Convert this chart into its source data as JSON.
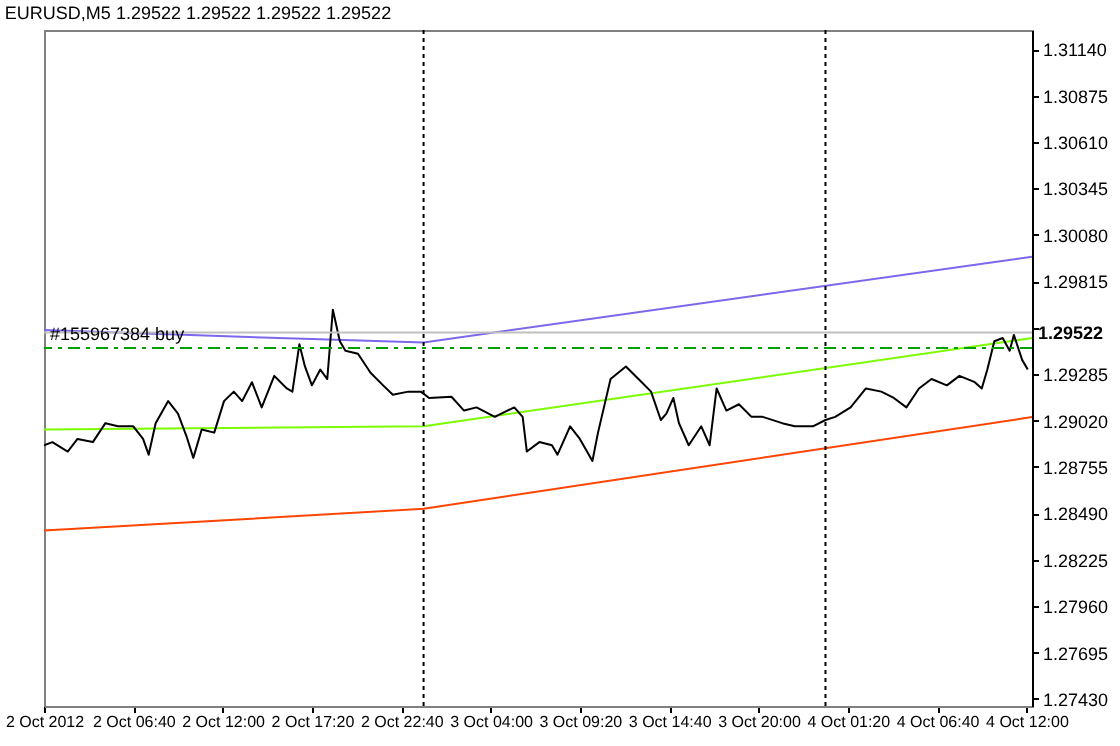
{
  "chart_data": {
    "type": "line",
    "title": "EURUSD,M5  1.29522 1.29522 1.29522 1.29522",
    "xlim": [
      "2012-10-02T01:20",
      "2012-10-04T12:20"
    ],
    "xticks": [
      {
        "value": "2012-10-02T01:20",
        "label": "2 Oct 2012"
      },
      {
        "value": "2012-10-02T06:40",
        "label": "2 Oct 06:40"
      },
      {
        "value": "2012-10-02T12:00",
        "label": "2 Oct 12:00"
      },
      {
        "value": "2012-10-02T17:20",
        "label": "2 Oct 17:20"
      },
      {
        "value": "2012-10-02T22:40",
        "label": "2 Oct 22:40"
      },
      {
        "value": "2012-10-03T04:00",
        "label": "3 Oct 04:00"
      },
      {
        "value": "2012-10-03T09:20",
        "label": "3 Oct 09:20"
      },
      {
        "value": "2012-10-03T14:40",
        "label": "3 Oct 14:40"
      },
      {
        "value": "2012-10-03T20:00",
        "label": "3 Oct 20:00"
      },
      {
        "value": "2012-10-04T01:20",
        "label": "4 Oct 01:20"
      },
      {
        "value": "2012-10-04T06:40",
        "label": "4 Oct 06:40"
      },
      {
        "value": "2012-10-04T12:00",
        "label": "4 Oct 12:00"
      }
    ],
    "ylim": [
      1.2739,
      1.3125
    ],
    "yticks": [
      {
        "value": 1.3114,
        "label": "1.31140"
      },
      1.30875,
      {
        "value": 1.3061,
        "label": "1.30610"
      },
      1.30345,
      {
        "value": 1.3008,
        "label": "1.30080"
      },
      1.29815,
      {
        "value": 1.2955,
        "label": null
      },
      1.29285,
      {
        "value": 1.2902,
        "label": "1.29020"
      },
      1.28755,
      {
        "value": 1.2849,
        "label": "1.28490"
      },
      1.28225,
      {
        "value": 1.2796,
        "label": "1.27960"
      },
      1.27695,
      {
        "value": 1.2743,
        "label": "1.27430"
      }
    ],
    "series": [
      {
        "color": "#7b68ee",
        "x": [
          "2012-10-02T01:20",
          "2012-10-02T17:20",
          "2012-10-03T00:00",
          "2012-10-04T12:20"
        ],
        "values": [
          1.29537,
          1.29485,
          1.29466,
          1.29955
        ]
      },
      {
        "color": "#7cfc00",
        "x": [
          "2012-10-02T01:20",
          "2012-10-03T00:00",
          "2012-10-04T12:20"
        ],
        "values": [
          1.28969,
          1.28987,
          1.29491
        ]
      },
      {
        "color": "#ff4500",
        "x": [
          "2012-10-02T01:20",
          "2012-10-03T00:00",
          "2012-10-04T12:20"
        ],
        "values": [
          1.28392,
          1.28516,
          1.2904
        ]
      },
      {
        "color": "#000000",
        "x": [
          "2012-10-02T01:20",
          "2012-10-02T01:50",
          "2012-10-02T02:45",
          "2012-10-02T03:20",
          "2012-10-02T04:15",
          "2012-10-02T05:00",
          "2012-10-02T05:45",
          "2012-10-02T06:40",
          "2012-10-02T07:15",
          "2012-10-02T07:35",
          "2012-10-02T08:00",
          "2012-10-02T08:45",
          "2012-10-02T09:20",
          "2012-10-02T09:50",
          "2012-10-02T10:15",
          "2012-10-02T10:45",
          "2012-10-02T11:30",
          "2012-10-02T12:05",
          "2012-10-02T12:40",
          "2012-10-02T13:10",
          "2012-10-02T13:45",
          "2012-10-02T14:20",
          "2012-10-02T15:05",
          "2012-10-02T15:50",
          "2012-10-02T16:10",
          "2012-10-02T16:35",
          "2012-10-02T16:55",
          "2012-10-02T17:20",
          "2012-10-02T17:50",
          "2012-10-02T18:15",
          "2012-10-02T18:35",
          "2012-10-02T19:00",
          "2012-10-02T19:20",
          "2012-10-02T20:05",
          "2012-10-02T20:50",
          "2012-10-02T21:35",
          "2012-10-02T22:10",
          "2012-10-02T23:05",
          "2012-10-02T23:50",
          "2012-10-03T00:20",
          "2012-10-03T01:40",
          "2012-10-03T02:25",
          "2012-10-03T03:10",
          "2012-10-03T04:15",
          "2012-10-03T05:25",
          "2012-10-03T05:55",
          "2012-10-03T06:10",
          "2012-10-03T06:55",
          "2012-10-03T07:40",
          "2012-10-03T08:00",
          "2012-10-03T08:45",
          "2012-10-03T09:20",
          "2012-10-03T10:05",
          "2012-10-03T10:25",
          "2012-10-03T11:10",
          "2012-10-03T12:05",
          "2012-10-03T12:50",
          "2012-10-03T13:35",
          "2012-10-03T14:10",
          "2012-10-03T14:30",
          "2012-10-03T14:55",
          "2012-10-03T15:15",
          "2012-10-03T15:50",
          "2012-10-03T16:35",
          "2012-10-03T17:05",
          "2012-10-03T17:30",
          "2012-10-03T18:05",
          "2012-10-03T18:50",
          "2012-10-03T19:35",
          "2012-10-03T20:15",
          "2012-10-03T21:25",
          "2012-10-03T22:10",
          "2012-10-03T23:15",
          "2012-10-04T00:00",
          "2012-10-04T00:35",
          "2012-10-04T01:30",
          "2012-10-04T02:25",
          "2012-10-04T03:20",
          "2012-10-04T04:05",
          "2012-10-04T04:50",
          "2012-10-04T05:35",
          "2012-10-04T06:20",
          "2012-10-04T07:15",
          "2012-10-04T08:00",
          "2012-10-04T08:55",
          "2012-10-04T09:20",
          "2012-10-04T09:40",
          "2012-10-04T10:05",
          "2012-10-04T10:35",
          "2012-10-04T11:00",
          "2012-10-04T11:15",
          "2012-10-04T11:45",
          "2012-10-04T12:05"
        ],
        "values": [
          1.28879,
          1.28897,
          1.28843,
          1.28915,
          1.28897,
          1.29005,
          1.28987,
          1.28987,
          1.28915,
          1.28825,
          1.29005,
          1.29131,
          1.29059,
          1.28933,
          1.28807,
          1.28969,
          1.28951,
          1.29131,
          1.29185,
          1.29131,
          1.29239,
          1.29095,
          1.29275,
          1.29203,
          1.29185,
          1.29455,
          1.29329,
          1.29221,
          1.29311,
          1.29257,
          1.29653,
          1.29473,
          1.29419,
          1.29401,
          1.29293,
          1.29221,
          1.29167,
          1.29185,
          1.29185,
          1.29149,
          1.29156,
          1.29077,
          1.29095,
          1.29041,
          1.29095,
          1.29041,
          1.28843,
          1.28897,
          1.28879,
          1.28825,
          1.28987,
          1.28915,
          1.28789,
          1.28951,
          1.29257,
          1.29329,
          1.29257,
          1.29185,
          1.29023,
          1.29059,
          1.29149,
          1.29005,
          1.28879,
          1.28987,
          1.28879,
          1.29203,
          1.29077,
          1.29113,
          1.29041,
          1.29041,
          1.29005,
          1.28987,
          1.28987,
          1.29023,
          1.29041,
          1.29095,
          1.29203,
          1.29185,
          1.29149,
          1.29095,
          1.29203,
          1.29257,
          1.29221,
          1.29275,
          1.29239,
          1.29203,
          1.29311,
          1.29473,
          1.29491,
          1.29419,
          1.29509,
          1.29365,
          1.29311
        ]
      }
    ],
    "ref_lines": [
      {
        "axis": "x",
        "value": "2012-10-03T00:00",
        "color": "#000000",
        "line_style": "dotted"
      },
      {
        "axis": "x",
        "value": "2012-10-04T00:00",
        "color": "#000000",
        "line_style": "dotted"
      },
      {
        "axis": "y",
        "value": 1.29522,
        "label": "1.29522",
        "color": "#c0c0c0",
        "line_style": "solid"
      },
      {
        "axis": "y",
        "value": 1.29434,
        "label": "#155967384 buy",
        "color": "#00a000",
        "line_style": "dashed"
      }
    ]
  }
}
